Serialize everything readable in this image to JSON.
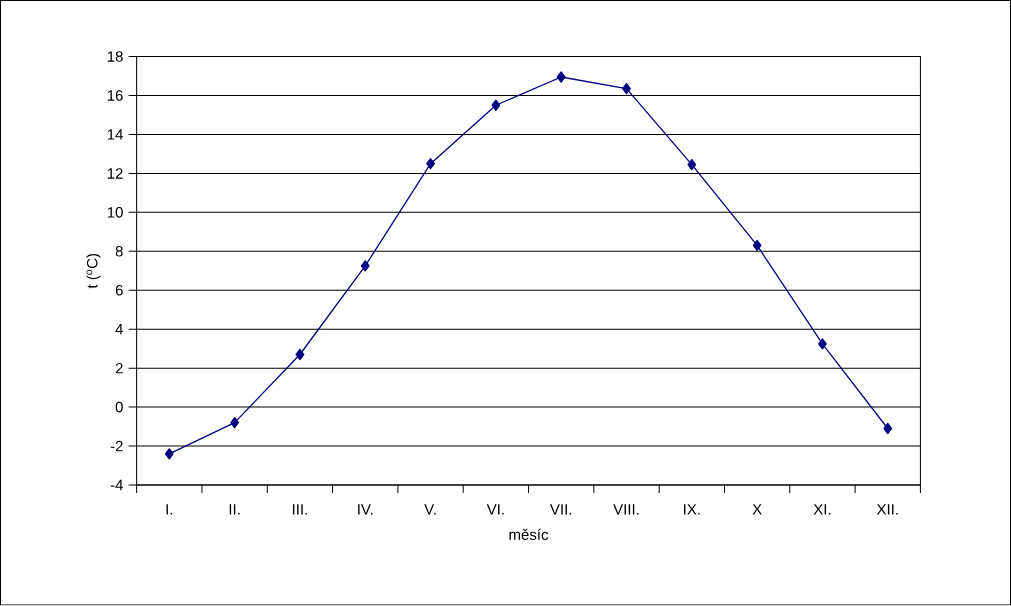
{
  "chart_data": {
    "type": "line",
    "xlabel": "měsíc",
    "ylabel": "t ($^{o}$C)",
    "categories": [
      "I.",
      "II.",
      "III.",
      "IV.",
      "V.",
      "VI.",
      "VII.",
      "VIII.",
      "IX.",
      "X",
      "XI.",
      "XII."
    ],
    "series": [
      {
        "color": "#000080",
        "values": [
          -2.4,
          -0.8,
          2.7,
          7.25,
          12.5,
          15.5,
          16.95,
          16.35,
          12.45,
          8.3,
          3.25,
          -1.1
        ]
      }
    ],
    "ylim": [
      -4,
      18
    ],
    "yticks": [
      -4,
      -2,
      0,
      2,
      4,
      6,
      8,
      10,
      12,
      14,
      16,
      18
    ],
    "grid": "y",
    "marker": "diamond",
    "line_style": "solid"
  }
}
